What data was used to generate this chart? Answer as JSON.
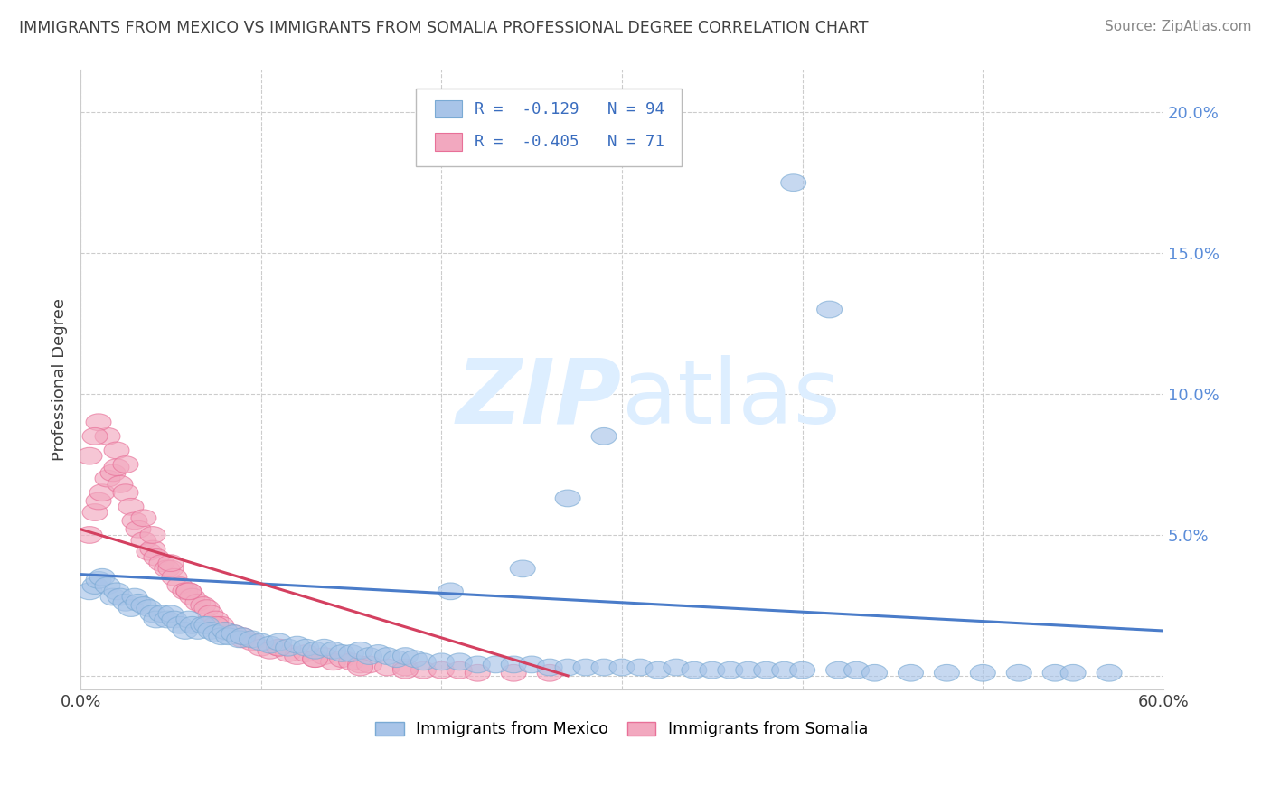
{
  "title": "IMMIGRANTS FROM MEXICO VS IMMIGRANTS FROM SOMALIA PROFESSIONAL DEGREE CORRELATION CHART",
  "source": "Source: ZipAtlas.com",
  "ylabel": "Professional Degree",
  "xlim": [
    0.0,
    0.6
  ],
  "ylim": [
    -0.005,
    0.215
  ],
  "x_ticks": [
    0.0,
    0.1,
    0.2,
    0.3,
    0.4,
    0.5,
    0.6
  ],
  "x_tick_labels": [
    "0.0%",
    "",
    "",
    "",
    "",
    "",
    "60.0%"
  ],
  "y_ticks": [
    0.0,
    0.05,
    0.1,
    0.15,
    0.2
  ],
  "y_tick_labels": [
    "",
    "5.0%",
    "10.0%",
    "15.0%",
    "20.0%"
  ],
  "mexico_R": -0.129,
  "mexico_N": 94,
  "somalia_R": -0.405,
  "somalia_N": 71,
  "mexico_color": "#a8c4e8",
  "somalia_color": "#f2a8bf",
  "mexico_edge_color": "#7aaad4",
  "somalia_edge_color": "#e87098",
  "mexico_line_color": "#4a7cc9",
  "somalia_line_color": "#d44060",
  "background_color": "#ffffff",
  "grid_color": "#cccccc",
  "title_color": "#404040",
  "watermark_zip": "ZIP",
  "watermark_atlas": "atlas",
  "watermark_color": "#ddeeff",
  "legend_label_mexico": "Immigrants from Mexico",
  "legend_label_somalia": "Immigrants from Somalia",
  "mexico_line_x0": 0.0,
  "mexico_line_y0": 0.036,
  "mexico_line_x1": 0.6,
  "mexico_line_y1": 0.016,
  "somalia_line_x0": 0.0,
  "somalia_line_y0": 0.052,
  "somalia_line_x1": 0.27,
  "somalia_line_y1": 0.0,
  "mexico_x": [
    0.005,
    0.008,
    0.01,
    0.012,
    0.015,
    0.018,
    0.02,
    0.022,
    0.025,
    0.028,
    0.03,
    0.032,
    0.035,
    0.038,
    0.04,
    0.042,
    0.045,
    0.048,
    0.05,
    0.052,
    0.055,
    0.058,
    0.06,
    0.062,
    0.065,
    0.068,
    0.07,
    0.072,
    0.075,
    0.078,
    0.08,
    0.082,
    0.085,
    0.088,
    0.09,
    0.095,
    0.1,
    0.105,
    0.11,
    0.115,
    0.12,
    0.125,
    0.13,
    0.135,
    0.14,
    0.145,
    0.15,
    0.155,
    0.16,
    0.165,
    0.17,
    0.175,
    0.18,
    0.185,
    0.19,
    0.2,
    0.21,
    0.22,
    0.23,
    0.24,
    0.25,
    0.26,
    0.27,
    0.28,
    0.29,
    0.3,
    0.31,
    0.32,
    0.33,
    0.34,
    0.35,
    0.36,
    0.37,
    0.38,
    0.39,
    0.4,
    0.42,
    0.43,
    0.44,
    0.46,
    0.48,
    0.5,
    0.52,
    0.54,
    0.55,
    0.57,
    0.395,
    0.415,
    0.29,
    0.27,
    0.245,
    0.205
  ],
  "mexico_y": [
    0.03,
    0.032,
    0.034,
    0.035,
    0.032,
    0.028,
    0.03,
    0.028,
    0.026,
    0.024,
    0.028,
    0.026,
    0.025,
    0.024,
    0.022,
    0.02,
    0.022,
    0.02,
    0.022,
    0.02,
    0.018,
    0.016,
    0.02,
    0.018,
    0.016,
    0.018,
    0.018,
    0.016,
    0.015,
    0.014,
    0.016,
    0.014,
    0.015,
    0.013,
    0.014,
    0.013,
    0.012,
    0.011,
    0.012,
    0.01,
    0.011,
    0.01,
    0.009,
    0.01,
    0.009,
    0.008,
    0.008,
    0.009,
    0.007,
    0.008,
    0.007,
    0.006,
    0.007,
    0.006,
    0.005,
    0.005,
    0.005,
    0.004,
    0.004,
    0.004,
    0.004,
    0.003,
    0.003,
    0.003,
    0.003,
    0.003,
    0.003,
    0.002,
    0.003,
    0.002,
    0.002,
    0.002,
    0.002,
    0.002,
    0.002,
    0.002,
    0.002,
    0.002,
    0.001,
    0.001,
    0.001,
    0.001,
    0.001,
    0.001,
    0.001,
    0.001,
    0.175,
    0.13,
    0.085,
    0.063,
    0.038,
    0.03
  ],
  "somalia_x": [
    0.005,
    0.008,
    0.01,
    0.012,
    0.015,
    0.018,
    0.02,
    0.022,
    0.025,
    0.028,
    0.03,
    0.032,
    0.035,
    0.038,
    0.04,
    0.042,
    0.045,
    0.048,
    0.05,
    0.052,
    0.055,
    0.058,
    0.06,
    0.062,
    0.065,
    0.068,
    0.07,
    0.072,
    0.075,
    0.078,
    0.08,
    0.085,
    0.09,
    0.095,
    0.1,
    0.105,
    0.11,
    0.115,
    0.12,
    0.125,
    0.13,
    0.135,
    0.14,
    0.145,
    0.15,
    0.155,
    0.16,
    0.17,
    0.18,
    0.19,
    0.2,
    0.21,
    0.22,
    0.24,
    0.26,
    0.015,
    0.02,
    0.025,
    0.01,
    0.008,
    0.005,
    0.035,
    0.04,
    0.05,
    0.06,
    0.075,
    0.09,
    0.11,
    0.13,
    0.155,
    0.18
  ],
  "somalia_y": [
    0.05,
    0.058,
    0.062,
    0.065,
    0.07,
    0.072,
    0.074,
    0.068,
    0.065,
    0.06,
    0.055,
    0.052,
    0.048,
    0.044,
    0.045,
    0.042,
    0.04,
    0.038,
    0.038,
    0.035,
    0.032,
    0.03,
    0.03,
    0.028,
    0.026,
    0.025,
    0.024,
    0.022,
    0.02,
    0.018,
    0.016,
    0.015,
    0.013,
    0.012,
    0.01,
    0.009,
    0.01,
    0.008,
    0.007,
    0.008,
    0.006,
    0.007,
    0.005,
    0.006,
    0.005,
    0.004,
    0.004,
    0.003,
    0.003,
    0.002,
    0.002,
    0.002,
    0.001,
    0.001,
    0.001,
    0.085,
    0.08,
    0.075,
    0.09,
    0.085,
    0.078,
    0.056,
    0.05,
    0.04,
    0.03,
    0.018,
    0.014,
    0.01,
    0.006,
    0.003,
    0.002
  ]
}
